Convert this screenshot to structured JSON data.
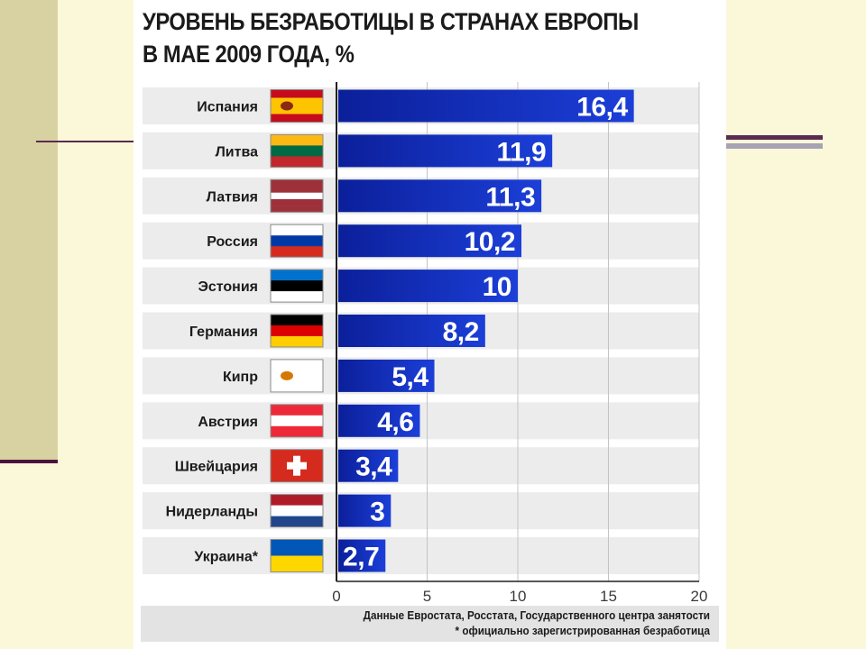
{
  "title_lines": [
    "УРОВЕНЬ БЕЗРАБОТИЦЫ В СТРАНАХ ЕВРОПЫ",
    "В МАЕ 2009 ГОДА, %"
  ],
  "footer": {
    "source": "Данные Евростата, Росстата, Государственного центра занятости",
    "note": "* официально зарегистрированная безработица"
  },
  "chart_data": {
    "type": "bar",
    "orientation": "horizontal",
    "categories": [
      "Испания",
      "Литва",
      "Латвия",
      "Россия",
      "Эстония",
      "Германия",
      "Кипр",
      "Австрия",
      "Швейцария",
      "Нидерланды",
      "Украина*"
    ],
    "values": [
      16.4,
      11.9,
      11.3,
      10.2,
      10,
      8.2,
      5.4,
      4.6,
      3.4,
      3,
      2.7
    ],
    "value_labels": [
      "16,4",
      "11,9",
      "11,3",
      "10,2",
      "10",
      "8,2",
      "5,4",
      "4,6",
      "3,4",
      "3",
      "2,7"
    ],
    "xlim": [
      0,
      20
    ],
    "xticks": [
      0,
      5,
      10,
      15,
      20
    ],
    "grid": true,
    "colors": {
      "bar": "#1c3fd8",
      "bar_dark": "#0b1f9a",
      "row_bg": "#ececec",
      "grid": "#c4c4c4"
    },
    "flags": [
      {
        "country": "Испания",
        "stripes": [
          "#c60b1e",
          "#ffc400",
          "#ffc400",
          "#c60b1e"
        ],
        "emblem": "#8a2a12"
      },
      {
        "country": "Литва",
        "stripes": [
          "#fdb913",
          "#006a44",
          "#c1272d"
        ]
      },
      {
        "country": "Латвия",
        "stripes": [
          "#9e3039",
          "#9e3039",
          "#ffffff",
          "#9e3039",
          "#9e3039"
        ]
      },
      {
        "country": "Россия",
        "stripes": [
          "#ffffff",
          "#0039a6",
          "#d52b1e"
        ]
      },
      {
        "country": "Эстония",
        "stripes": [
          "#0072ce",
          "#000000",
          "#ffffff"
        ]
      },
      {
        "country": "Германия",
        "stripes": [
          "#000000",
          "#dd0000",
          "#ffce00"
        ]
      },
      {
        "country": "Кипр",
        "stripes": [
          "#ffffff"
        ],
        "emblem": "#d57800"
      },
      {
        "country": "Австрия",
        "stripes": [
          "#ed2939",
          "#ffffff",
          "#ed2939"
        ]
      },
      {
        "country": "Швейцария",
        "stripes": [
          "#d52b1e"
        ],
        "cross": "#ffffff"
      },
      {
        "country": "Нидерланды",
        "stripes": [
          "#ae1c28",
          "#ffffff",
          "#21468b"
        ]
      },
      {
        "country": "Украина*",
        "stripes": [
          "#0057b7",
          "#ffd700"
        ]
      }
    ]
  }
}
